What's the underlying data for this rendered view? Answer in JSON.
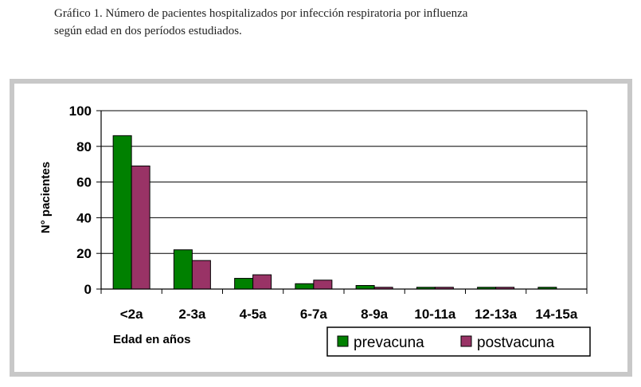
{
  "caption": {
    "line1": "Gráfico 1.  Número de pacientes hospitalizados por infección respiratoria por influenza",
    "line2": "según edad en dos períodos estudiados."
  },
  "chart_data": {
    "type": "bar",
    "title": "",
    "xlabel": "Edad en años",
    "ylabel": "N° pacientes",
    "ylim": [
      0,
      100
    ],
    "yticks": [
      0,
      20,
      40,
      60,
      80,
      100
    ],
    "grid": true,
    "legend_position": "bottom-right",
    "categories": [
      "<2a",
      "2-3a",
      "4-5a",
      "6-7a",
      "8-9a",
      "10-11a",
      "12-13a",
      "14-15a"
    ],
    "series": [
      {
        "name": "prevacuna",
        "color": "#008000",
        "values": [
          86,
          22,
          6,
          3,
          2,
          1,
          1,
          1
        ]
      },
      {
        "name": "postvacuna",
        "color": "#993366",
        "values": [
          69,
          16,
          8,
          5,
          1,
          1,
          1,
          0
        ]
      }
    ]
  }
}
